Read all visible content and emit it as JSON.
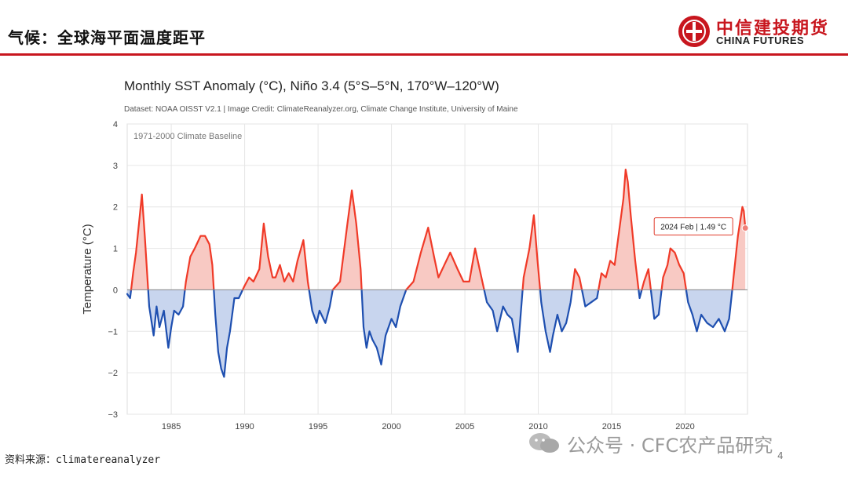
{
  "header": {
    "title": "气候：全球海平面温度距平",
    "logo_cn": "中信建投期货",
    "logo_en": "CHINA FUTURES"
  },
  "footer": {
    "source": "资料来源：climatereanalyzer",
    "page_number": "4",
    "watermark": "公众号 · CFC农产品研究"
  },
  "colors": {
    "accent": "#c8161e",
    "positive": "#f03a28",
    "positive_fill": "#f8c9c3",
    "negative": "#1e4fb0",
    "negative_fill": "#c8d5ee"
  },
  "chart_data": {
    "type": "area",
    "title": "Monthly SST Anomaly (°C), Niño 3.4 (5°S–5°N, 170°W–120°W)",
    "subtitle": "Dataset: NOAA OISST V2.1 | Image Credit: ClimateReanalyzer.org, Climate Change Institute, University of Maine",
    "annotation": "1971-2000 Climate Baseline",
    "ylabel": "Temperature (°C)",
    "xlabel": "",
    "ylim": [
      -3,
      4
    ],
    "xlim": [
      1982.0,
      2024.25
    ],
    "yticks": [
      -3,
      -2,
      -1,
      0,
      1,
      2,
      3,
      4
    ],
    "yticklabels": [
      "−3",
      "−2",
      "−1",
      "0",
      "1",
      "2",
      "3",
      "4"
    ],
    "xticks": [
      1985,
      1990,
      1995,
      2000,
      2005,
      2010,
      2015,
      2020
    ],
    "xticklabels": [
      "1985",
      "1990",
      "1995",
      "2000",
      "2005",
      "2010",
      "2015",
      "2020"
    ],
    "grid": true,
    "tooltip": {
      "label": "2024 Feb | 1.49 °C",
      "x": 2024.1,
      "y": 1.49
    },
    "series": [
      {
        "name": "Niño 3.4 SST anomaly",
        "x": [
          1982.0,
          1982.2,
          1982.4,
          1982.6,
          1982.8,
          1983.0,
          1983.2,
          1983.5,
          1983.8,
          1984.0,
          1984.2,
          1984.5,
          1984.8,
          1985.0,
          1985.2,
          1985.5,
          1985.8,
          1986.0,
          1986.3,
          1986.6,
          1987.0,
          1987.3,
          1987.6,
          1987.8,
          1988.0,
          1988.2,
          1988.4,
          1988.6,
          1988.8,
          1989.0,
          1989.3,
          1989.6,
          1990.0,
          1990.3,
          1990.6,
          1991.0,
          1991.3,
          1991.6,
          1991.9,
          1992.1,
          1992.4,
          1992.7,
          1993.0,
          1993.3,
          1993.6,
          1994.0,
          1994.3,
          1994.6,
          1994.9,
          1995.1,
          1995.5,
          1995.8,
          1996.0,
          1996.5,
          1997.0,
          1997.3,
          1997.6,
          1997.9,
          1998.1,
          1998.3,
          1998.5,
          1998.7,
          1999.0,
          1999.3,
          1999.6,
          2000.0,
          2000.3,
          2000.6,
          2001.0,
          2001.5,
          2002.0,
          2002.5,
          2002.9,
          2003.2,
          2003.6,
          2004.0,
          2004.5,
          2004.9,
          2005.3,
          2005.7,
          2006.0,
          2006.5,
          2006.9,
          2007.2,
          2007.6,
          2007.9,
          2008.2,
          2008.6,
          2009.0,
          2009.4,
          2009.7,
          2009.95,
          2010.2,
          2010.5,
          2010.8,
          2011.0,
          2011.3,
          2011.6,
          2011.9,
          2012.2,
          2012.5,
          2012.8,
          2013.2,
          2013.6,
          2014.0,
          2014.3,
          2014.6,
          2014.9,
          2015.2,
          2015.5,
          2015.8,
          2015.95,
          2016.1,
          2016.3,
          2016.6,
          2016.9,
          2017.2,
          2017.5,
          2017.9,
          2018.2,
          2018.5,
          2018.8,
          2019.0,
          2019.3,
          2019.6,
          2019.9,
          2020.2,
          2020.5,
          2020.8,
          2021.1,
          2021.5,
          2021.9,
          2022.3,
          2022.7,
          2023.0,
          2023.3,
          2023.6,
          2023.9,
          2024.0,
          2024.1
        ],
        "values": [
          -0.1,
          -0.2,
          0.4,
          0.9,
          1.6,
          2.3,
          1.3,
          -0.4,
          -1.1,
          -0.4,
          -0.9,
          -0.5,
          -1.4,
          -0.9,
          -0.5,
          -0.6,
          -0.4,
          0.2,
          0.8,
          1.0,
          1.3,
          1.3,
          1.1,
          0.6,
          -0.6,
          -1.5,
          -1.9,
          -2.1,
          -1.4,
          -1.0,
          -0.2,
          -0.2,
          0.1,
          0.3,
          0.2,
          0.5,
          1.6,
          0.8,
          0.3,
          0.3,
          0.6,
          0.2,
          0.4,
          0.2,
          0.7,
          1.2,
          0.2,
          -0.5,
          -0.8,
          -0.5,
          -0.8,
          -0.4,
          0.0,
          0.2,
          1.6,
          2.4,
          1.6,
          0.5,
          -0.9,
          -1.4,
          -1.0,
          -1.2,
          -1.4,
          -1.8,
          -1.1,
          -0.7,
          -0.9,
          -0.4,
          0.0,
          0.2,
          0.9,
          1.5,
          0.8,
          0.3,
          0.6,
          0.9,
          0.5,
          0.2,
          0.2,
          1.0,
          0.5,
          -0.3,
          -0.5,
          -1.0,
          -0.4,
          -0.6,
          -0.7,
          -1.5,
          0.3,
          1.0,
          1.8,
          0.7,
          -0.3,
          -1.0,
          -1.5,
          -1.1,
          -0.6,
          -1.0,
          -0.8,
          -0.3,
          0.5,
          0.3,
          -0.4,
          -0.3,
          -0.2,
          0.4,
          0.3,
          0.7,
          0.6,
          1.4,
          2.2,
          2.9,
          2.6,
          1.8,
          0.7,
          -0.2,
          0.2,
          0.5,
          -0.7,
          -0.6,
          0.3,
          0.6,
          1.0,
          0.9,
          0.6,
          0.4,
          -0.3,
          -0.6,
          -1.0,
          -0.6,
          -0.8,
          -0.9,
          -0.7,
          -1.0,
          -0.7,
          0.3,
          1.3,
          2.0,
          1.9,
          1.49
        ]
      }
    ]
  }
}
